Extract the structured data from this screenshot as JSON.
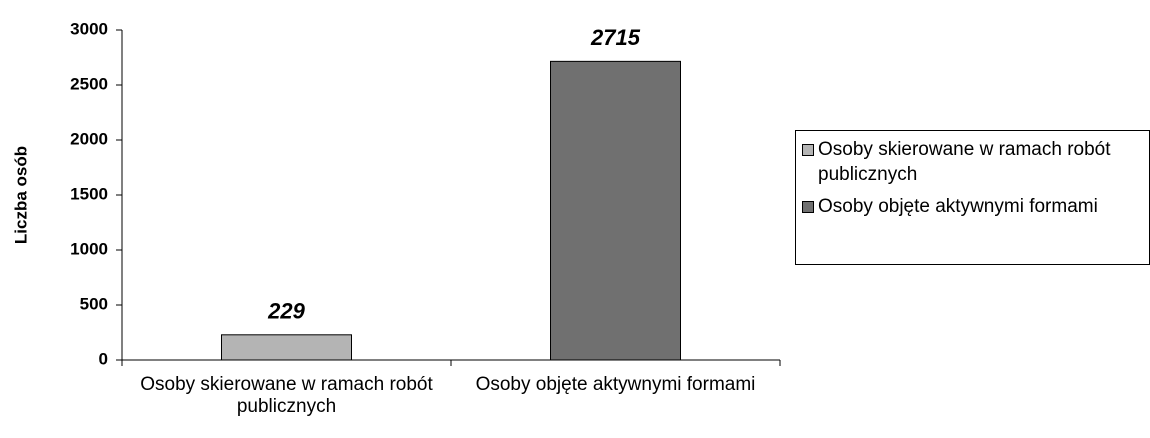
{
  "chart_data": {
    "type": "bar",
    "categories": [
      "Osoby skierowane w ramach robót publicznych",
      "Osoby objęte aktywnymi formami"
    ],
    "values": [
      229,
      2715
    ],
    "colors": [
      "#b4b4b4",
      "#707070"
    ],
    "ylabel": "Liczba osób",
    "ylim": [
      0,
      3000
    ],
    "yticks": [
      0,
      500,
      1000,
      1500,
      2000,
      2500,
      3000
    ],
    "grid": false,
    "legend": "right"
  }
}
